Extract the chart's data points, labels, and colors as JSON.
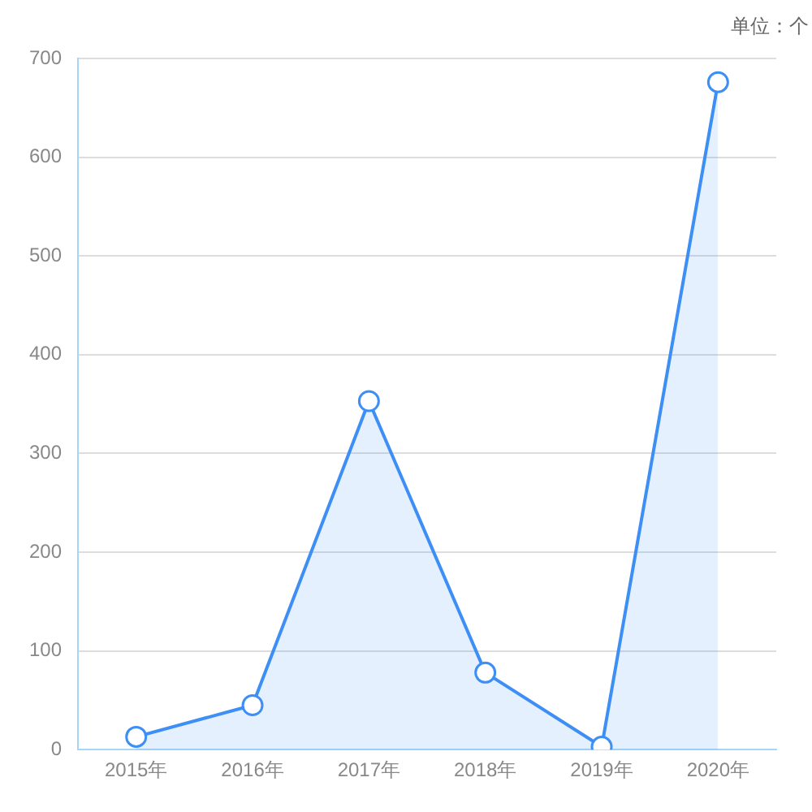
{
  "chart_data": {
    "type": "area",
    "categories": [
      "2015年",
      "2016年",
      "2017年",
      "2018年",
      "2019年",
      "2020年"
    ],
    "series": [
      {
        "color": "#3d8ef5",
        "values": [
          13,
          45,
          353,
          78,
          3,
          676
        ]
      }
    ],
    "ylim": [
      0,
      700
    ],
    "yticks": [
      0,
      100,
      200,
      300,
      400,
      500,
      600,
      700
    ],
    "grid": "y",
    "marker": "circle",
    "line_style": "solid",
    "legend": false,
    "annotations": [
      "单位：个"
    ]
  }
}
